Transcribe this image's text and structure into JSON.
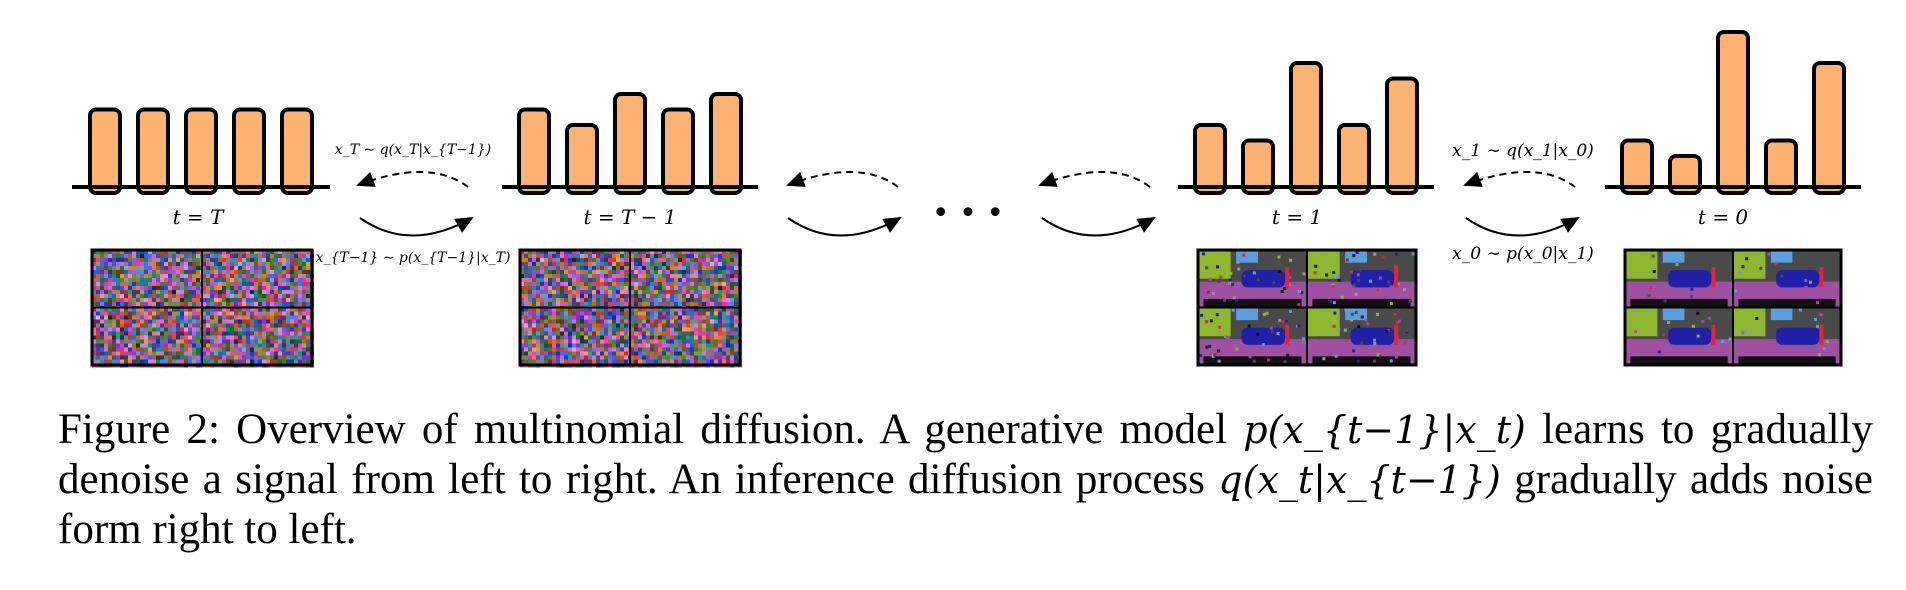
{
  "stages": [
    {
      "label": "t = T",
      "values": [
        5,
        5,
        5,
        5,
        5
      ],
      "image": "noise",
      "seed": 11
    },
    {
      "label": "t = T − 1",
      "values": [
        5,
        4,
        6,
        5,
        6
      ],
      "image": "noise",
      "seed": 23
    },
    {
      "label": "t = 1",
      "values": [
        4,
        3,
        8,
        4,
        7
      ],
      "image": "segmentation",
      "seed": 37
    },
    {
      "label": "t = 0",
      "values": [
        3,
        2,
        10,
        3,
        8
      ],
      "image": "segmentation",
      "seed": 53
    }
  ],
  "arrows": {
    "a1_forward": "x_T ∼ q(x_T|x_{T−1})",
    "a1_reverse": "x_{T−1} ∼ p(x_{T−1}|x_T)",
    "a4_forward": "x_1 ∼ q(x_1|x_0)",
    "a4_reverse": "x_0 ∼ p(x_0|x_1)"
  },
  "ellipsis": "• • •",
  "colors": {
    "bar_fill": "#FDB272",
    "seg_palette": [
      "#4a4a4a",
      "#a050a0",
      "#1f1fa8",
      "#8db72f",
      "#5aa0e0",
      "#e2243c",
      "#111111",
      "#9a9a9a"
    ]
  },
  "caption": {
    "line1_a": "Figure 2: Overview of multinomial diffusion. A generative model ",
    "line1_math": "p(x_{t−1}|x_t)",
    "line1_b": " learns to gradually",
    "line2_a": "denoise a signal from left to right. An inference diffusion process ",
    "line2_math": "q(x_t|x_{t−1})",
    "line2_b": " gradually adds noise",
    "line3": "form right to left."
  }
}
